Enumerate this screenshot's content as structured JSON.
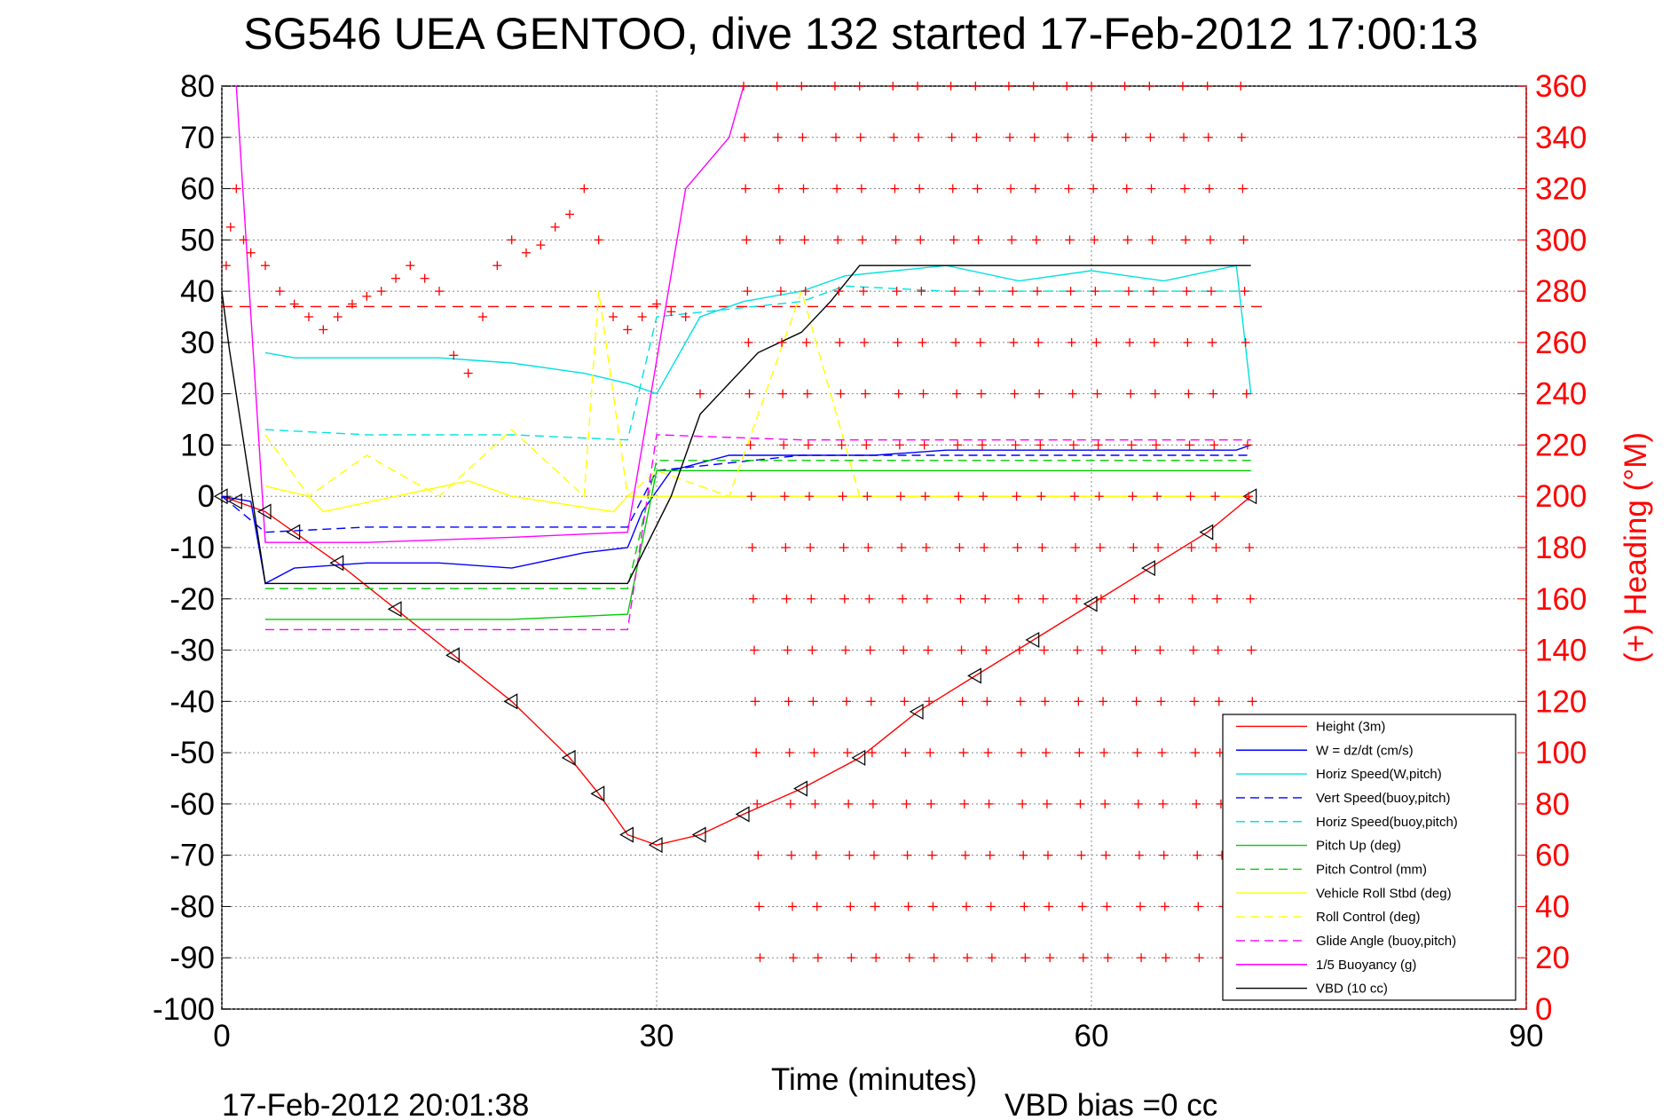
{
  "chart_data": {
    "type": "line",
    "title": "SG546 UEA GENTOO, dive 132 started 17-Feb-2012 17:00:13",
    "xlabel": "Time (minutes)",
    "ylabel_right": "(+) Heading (°M)",
    "xlim": [
      0,
      90
    ],
    "ylim": [
      -100,
      80
    ],
    "ylim_right": [
      0,
      360
    ],
    "x_ticks": [
      "0",
      "30",
      "60",
      "90"
    ],
    "y_ticks": [
      "80",
      "70",
      "60",
      "50",
      "40",
      "30",
      "20",
      "10",
      "0",
      "-10",
      "-20",
      "-30",
      "-40",
      "-50",
      "-60",
      "-70",
      "-80",
      "-90",
      "-100"
    ],
    "y_ticks_right": [
      "360",
      "340",
      "320",
      "300",
      "280",
      "260",
      "240",
      "220",
      "200",
      "180",
      "160",
      "140",
      "120",
      "100",
      "80",
      "60",
      "40",
      "20",
      "0"
    ],
    "grid": true,
    "legend_position": "bottom-right",
    "footer_left": "17-Feb-2012 20:01:38",
    "footer_right": "VBD bias =0 cc",
    "heading_reference": 274,
    "series": [
      {
        "name": "Height (3m)",
        "color": "#ff0000",
        "style": "solid",
        "x": [
          0,
          1,
          3,
          5,
          8,
          12,
          16,
          20,
          24,
          26,
          28,
          30,
          33,
          36,
          40,
          44,
          48,
          52,
          56,
          60,
          64,
          68,
          71
        ],
        "y": [
          0,
          -1,
          -3,
          -7,
          -13,
          -22,
          -31,
          -40,
          -51,
          -58,
          -66,
          -68,
          -66,
          -62,
          -57,
          -51,
          -42,
          -35,
          -28,
          -21,
          -14,
          -7,
          0
        ]
      },
      {
        "name": "W = dz/dt (cm/s)",
        "color": "#0000ff",
        "style": "solid",
        "x": [
          0,
          2,
          3,
          5,
          10,
          15,
          20,
          25,
          28,
          29,
          31,
          35,
          40,
          45,
          50,
          55,
          60,
          65,
          70,
          71
        ],
        "y": [
          0,
          -1,
          -17,
          -14,
          -13,
          -13,
          -14,
          -11,
          -10,
          -3,
          5,
          8,
          8,
          8,
          9,
          9,
          9,
          9,
          9,
          10
        ]
      },
      {
        "name": "Horiz Speed(W,pitch)",
        "color": "#00e0e0",
        "style": "solid",
        "x": [
          3,
          5,
          10,
          15,
          20,
          25,
          28,
          30,
          33,
          36,
          40,
          43,
          50,
          55,
          60,
          65,
          70,
          71
        ],
        "y": [
          28,
          27,
          27,
          27,
          26,
          24,
          22,
          20,
          35,
          38,
          40,
          43,
          45,
          42,
          44,
          42,
          45,
          20
        ]
      },
      {
        "name": "Vert Speed(buoy,pitch)",
        "color": "#0000ff",
        "style": "dashed",
        "x": [
          0,
          3,
          10,
          20,
          28,
          30,
          40,
          50,
          60,
          70,
          71
        ],
        "y": [
          0,
          -7,
          -6,
          -6,
          -6,
          5,
          8,
          8,
          8,
          8,
          8
        ]
      },
      {
        "name": "Horiz Speed(buoy,pitch)",
        "color": "#00e0e0",
        "style": "dashed",
        "x": [
          3,
          10,
          20,
          28,
          30,
          40,
          43,
          50,
          60,
          70,
          71
        ],
        "y": [
          13,
          12,
          12,
          11,
          35,
          38,
          41,
          40,
          40,
          40,
          40
        ]
      },
      {
        "name": "Pitch Up (deg)",
        "color": "#00cc00",
        "style": "solid",
        "x": [
          3,
          10,
          20,
          28,
          30,
          40,
          50,
          60,
          70,
          71
        ],
        "y": [
          -24,
          -24,
          -24,
          -23,
          5,
          5,
          5,
          5,
          5,
          5
        ]
      },
      {
        "name": "Pitch Control (mm)",
        "color": "#00cc00",
        "style": "dashed",
        "x": [
          3,
          10,
          20,
          28,
          30,
          40,
          50,
          60,
          70,
          71
        ],
        "y": [
          -18,
          -18,
          -18,
          -18,
          7,
          7,
          7,
          7,
          7,
          7
        ]
      },
      {
        "name": "Vehicle Roll Stbd (deg)",
        "color": "#ffff00",
        "style": "solid",
        "x": [
          3,
          6,
          7,
          12,
          17,
          20,
          27,
          28,
          30,
          40,
          45,
          50,
          55,
          60,
          65,
          70,
          71
        ],
        "y": [
          2,
          0,
          -3,
          0,
          3,
          0,
          -3,
          0,
          0,
          0,
          0,
          0,
          0,
          0,
          0,
          0,
          0
        ]
      },
      {
        "name": "Roll Control (deg)",
        "color": "#ffff00",
        "style": "dashed",
        "x": [
          3,
          6,
          10,
          15,
          20,
          25,
          26,
          28,
          30,
          35,
          40,
          44,
          48,
          52,
          56,
          60,
          64,
          68,
          71
        ],
        "y": [
          12,
          0,
          8,
          0,
          13,
          0,
          40,
          0,
          5,
          0,
          40,
          0,
          0,
          0,
          0,
          0,
          0,
          0,
          0
        ]
      },
      {
        "name": "Glide Angle (buoy,pitch)",
        "color": "#ff00ff",
        "style": "dashed",
        "x": [
          3,
          10,
          20,
          28,
          30,
          40,
          50,
          60,
          70,
          71
        ],
        "y": [
          -26,
          -26,
          -26,
          -26,
          12,
          11,
          11,
          11,
          11,
          11
        ]
      },
      {
        "name": "1/5 Buoyancy (g)",
        "color": "#ff00ff",
        "style": "solid",
        "x": [
          1,
          3,
          10,
          20,
          28,
          32,
          35,
          36
        ],
        "y": [
          80,
          -9,
          -9,
          -8,
          -7,
          60,
          70,
          80
        ]
      },
      {
        "name": "VBD (10 cc)",
        "color": "#000000",
        "style": "solid",
        "x": [
          0,
          0.5,
          3,
          10,
          20,
          28,
          31,
          33,
          37,
          40,
          42,
          44,
          55,
          65,
          71
        ],
        "y": [
          40,
          29,
          -17,
          -17,
          -17,
          -17,
          0,
          16,
          28,
          32,
          38,
          45,
          45,
          45,
          45
        ]
      }
    ],
    "heading_series": {
      "name": "Heading",
      "color": "#ff0000",
      "marker": "+",
      "x": [
        0.3,
        0.6,
        1,
        1.5,
        2,
        3,
        4,
        5,
        6,
        7,
        8,
        9,
        10,
        11,
        12,
        13,
        14,
        15,
        16,
        17,
        18,
        19,
        20,
        21,
        22,
        23,
        24,
        25,
        26,
        27,
        28,
        29,
        30,
        31,
        32,
        33
      ],
      "y": [
        290,
        305,
        320,
        300,
        295,
        290,
        280,
        275,
        270,
        265,
        270,
        275,
        278,
        280,
        285,
        290,
        285,
        280,
        255,
        248,
        270,
        290,
        300,
        295,
        298,
        305,
        310,
        320,
        300,
        270,
        265,
        270,
        275,
        272,
        270,
        240
      ]
    },
    "heading_scatter_columns": [
      36,
      38,
      40,
      42,
      44,
      46,
      48,
      50,
      52,
      54,
      56,
      58,
      60,
      62,
      64,
      66,
      68,
      70
    ]
  }
}
